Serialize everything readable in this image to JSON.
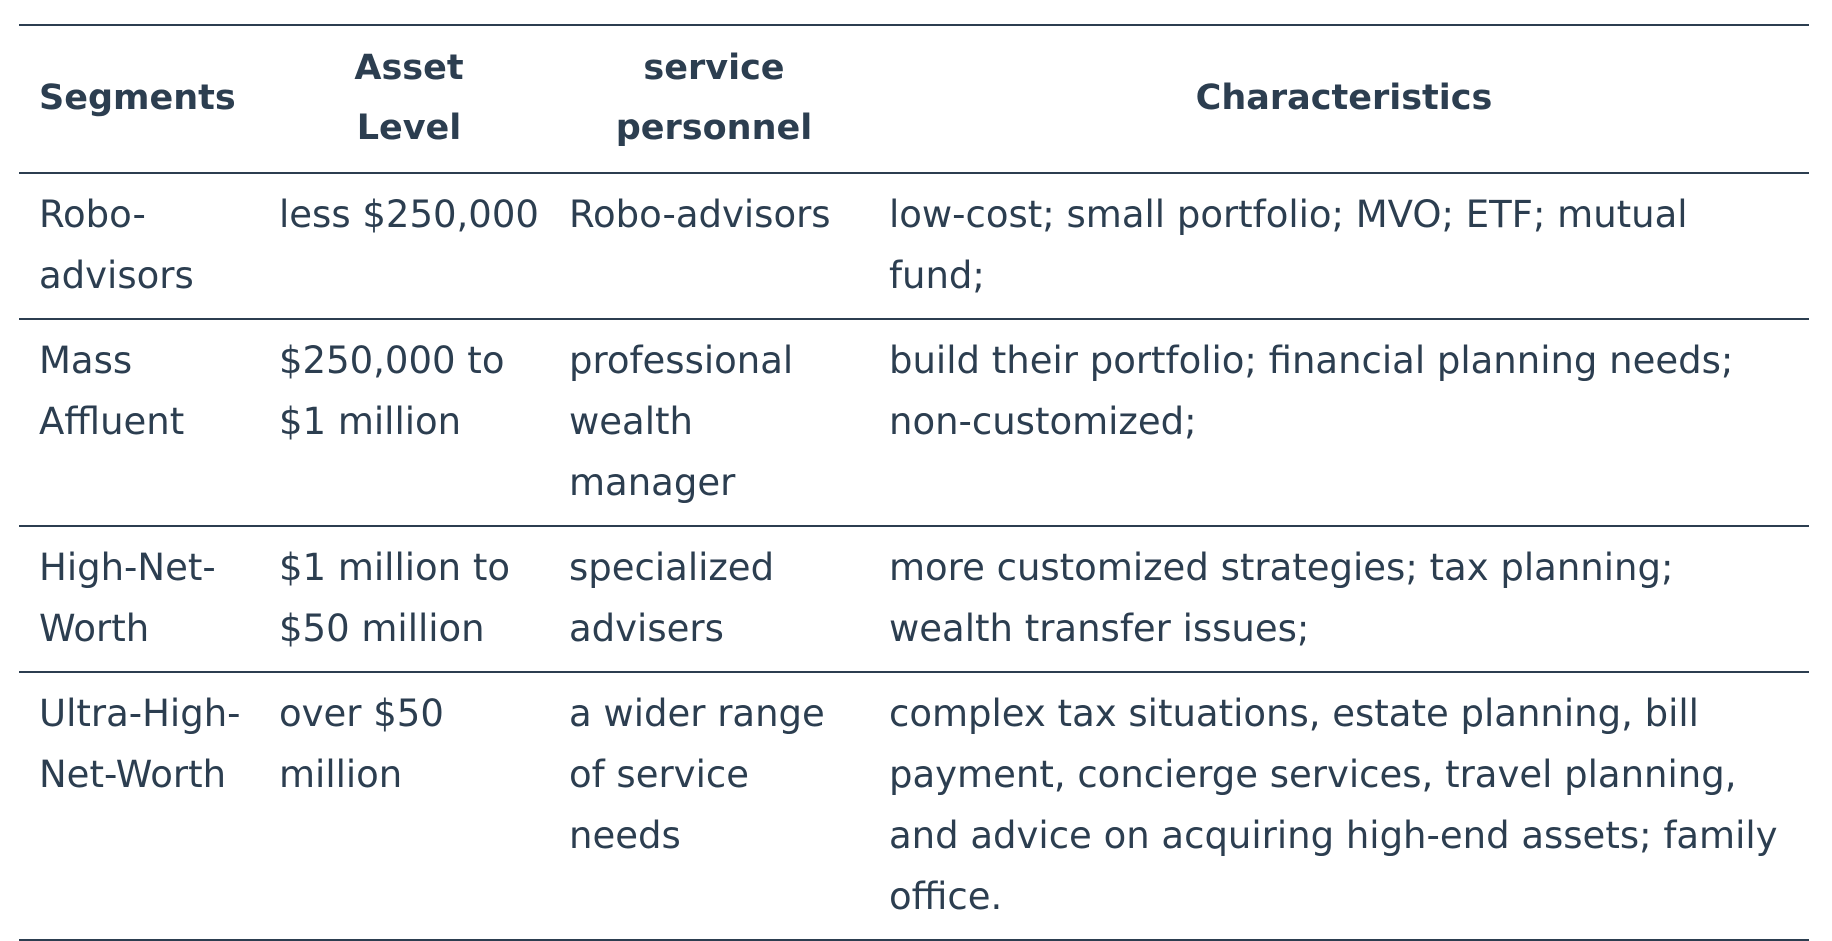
{
  "table": {
    "headers": [
      "Segments",
      "Asset\nLevel",
      "service\npersonnel",
      "Characteristics"
    ],
    "rows": [
      {
        "segment": "Robo-advisors",
        "asset_level": "less $250,000",
        "service_personnel": "Robo-advisors",
        "characteristics": "low-cost; small portfolio; MVO; ETF; mutual fund;"
      },
      {
        "segment": "Mass Affluent",
        "asset_level": "$250,000 to $1 million",
        "service_personnel": "professional wealth manager",
        "characteristics": "build their portfolio; financial planning needs; non-customized;"
      },
      {
        "segment": "High-Net-Worth",
        "asset_level": "$1 million to $50 million",
        "service_personnel": "specialized advisers",
        "characteristics": "more customized strategies; tax planning; wealth transfer issues;"
      },
      {
        "segment": "Ultra-High-Net-Worth",
        "asset_level": "over $50 million",
        "service_personnel": "a wider range of service needs",
        "characteristics": "complex tax situations, estate planning, bill payment, concierge services, travel planning, and advice on acquiring high-end assets; family office."
      }
    ]
  }
}
